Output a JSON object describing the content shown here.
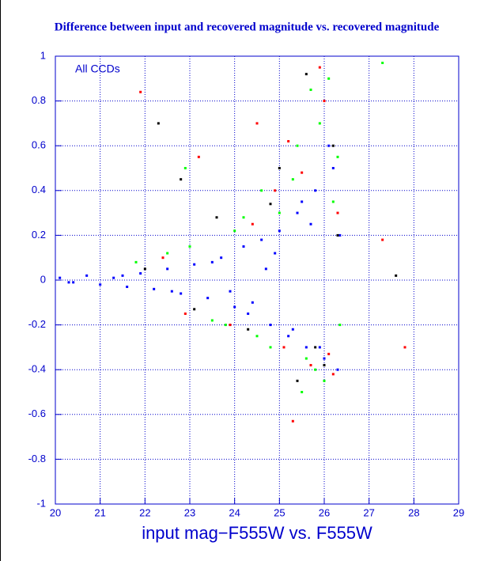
{
  "chart_data": {
    "type": "scatter",
    "title": "Difference between input and recovered magnitude vs. recovered magnitude",
    "xlabel": "input mag−F555W vs. F555W",
    "annotation": "All CCDs",
    "xlim": [
      20,
      29
    ],
    "ylim": [
      -1,
      1
    ],
    "xticks": [
      20,
      21,
      22,
      23,
      24,
      25,
      26,
      27,
      28,
      29
    ],
    "yticks": [
      -1,
      -0.8,
      -0.6,
      -0.4,
      -0.2,
      0,
      0.2,
      0.4,
      0.6,
      0.8,
      1
    ],
    "grid": true,
    "series": [
      {
        "color": "#0000ff",
        "x": [
          20.1,
          20.4,
          20.7,
          21.0,
          21.3,
          21.6,
          21.9,
          22.2,
          22.5,
          22.8,
          23.1,
          23.4,
          23.7,
          24.0,
          24.2,
          24.4,
          24.6,
          24.8,
          25.0,
          25.2,
          25.4,
          25.6,
          25.8,
          26.0,
          26.2,
          26.3,
          20.3,
          21.5,
          22.6,
          23.5,
          24.3,
          24.9,
          25.3,
          25.7,
          26.1,
          26.35,
          25.9,
          25.5,
          24.7,
          23.9
        ],
        "values": [
          0.01,
          -0.01,
          0.02,
          -0.02,
          0.01,
          -0.03,
          0.03,
          -0.04,
          0.05,
          -0.06,
          0.07,
          -0.08,
          0.1,
          -0.12,
          0.15,
          -0.1,
          0.18,
          -0.2,
          0.22,
          -0.25,
          0.3,
          -0.3,
          0.4,
          -0.35,
          0.5,
          -0.4,
          -0.01,
          0.02,
          -0.05,
          0.08,
          -0.15,
          0.12,
          -0.22,
          0.25,
          0.6,
          0.2,
          -0.3,
          0.35,
          0.05,
          -0.05
        ]
      },
      {
        "color": "#00ff00",
        "x": [
          22.5,
          23.0,
          23.5,
          24.0,
          24.5,
          25.0,
          25.3,
          25.6,
          25.9,
          26.1,
          26.3,
          25.8,
          25.4,
          24.8,
          24.2,
          23.8,
          22.9,
          25.7,
          26.0,
          26.2,
          21.8,
          24.6,
          25.5,
          26.35,
          27.3
        ],
        "values": [
          0.12,
          0.15,
          -0.18,
          0.22,
          -0.25,
          0.3,
          0.45,
          -0.35,
          0.7,
          0.9,
          0.55,
          -0.4,
          0.6,
          -0.3,
          0.28,
          -0.2,
          0.5,
          0.85,
          -0.45,
          0.35,
          0.08,
          0.4,
          -0.5,
          -0.2,
          0.97
        ]
      },
      {
        "color": "#ff0000",
        "x": [
          21.9,
          22.4,
          23.2,
          23.9,
          24.5,
          25.1,
          25.5,
          25.9,
          26.2,
          26.3,
          25.7,
          25.2,
          24.4,
          26.0,
          25.3,
          22.9,
          27.3,
          27.8,
          26.1,
          24.9
        ],
        "values": [
          0.84,
          0.1,
          0.55,
          -0.2,
          0.7,
          -0.3,
          0.48,
          0.95,
          -0.42,
          0.3,
          -0.38,
          0.62,
          0.25,
          0.8,
          -0.63,
          -0.15,
          0.18,
          -0.3,
          -0.33,
          0.4
        ]
      },
      {
        "color": "#000000",
        "x": [
          22.3,
          22.8,
          23.6,
          24.3,
          25.0,
          25.6,
          26.0,
          26.2,
          25.8,
          24.8,
          23.1,
          26.3,
          25.4,
          27.6,
          22.0
        ],
        "values": [
          0.7,
          0.45,
          0.28,
          -0.22,
          0.5,
          0.92,
          -0.38,
          0.6,
          -0.3,
          0.34,
          -0.13,
          0.2,
          -0.45,
          0.02,
          0.05
        ]
      }
    ]
  }
}
